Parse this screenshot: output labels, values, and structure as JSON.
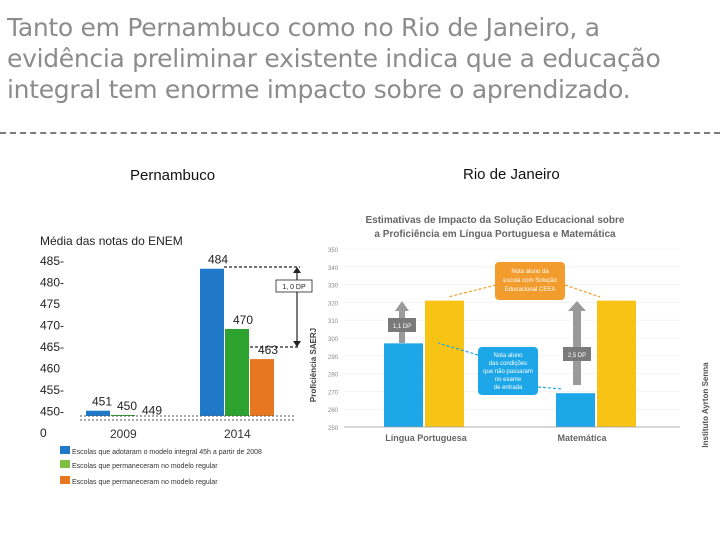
{
  "slide": {
    "title": "Tanto em Pernambuco como no Rio de Janeiro, a evidência preliminar existente indica que a educação integral tem enorme impacto sobre o aprendizado."
  },
  "chart_data": [
    {
      "type": "bar",
      "panel_label": "Pernambuco",
      "title": "Média das notas do ENEM",
      "categories": [
        "2009",
        "2014"
      ],
      "y_tick_labels": [
        "485-",
        "480-",
        "475",
        "470-",
        "465-",
        "460",
        "455-",
        "450-",
        "0"
      ],
      "ylim": [
        450,
        485
      ],
      "series": [
        {
          "name": "Escolas que adotaram o modelo integral 45h a partir de 2008",
          "color": "#1f78c8",
          "values": [
            451,
            484
          ]
        },
        {
          "name": "Escolas que permaneceram no modelo regular",
          "color": "#2ea22e",
          "values": [
            450,
            470
          ]
        },
        {
          "name": "Escolas que permaneceram no modelo regular",
          "color": "#e87722",
          "values": [
            449,
            463
          ]
        }
      ],
      "value_labels": [
        [
          "451",
          "450",
          "449"
        ],
        [
          "484",
          "470",
          "463"
        ]
      ],
      "annotation": "1, 0 DP"
    },
    {
      "type": "bar",
      "panel_label": "Rio de Janeiro",
      "title": "Estimativas de Impacto da Solução Educacional sobre a Proficiência em Língua Portuguesa e Matemática",
      "ylabel": "Proficiência SAERJ",
      "ylim": [
        250,
        350
      ],
      "y_ticks": [
        "350",
        "340",
        "330",
        "320",
        "310",
        "300",
        "290",
        "280",
        "270",
        "260",
        "250"
      ],
      "categories": [
        "Língua Portuguesa",
        "Matemática"
      ],
      "series": [
        {
          "name": "Nota aluno das condições que não passaram no exame de entrada",
          "color": "#1ea7e8",
          "values": [
            297,
            269
          ]
        },
        {
          "name": "Nota aluno da escola com Solução Educacional CEEA",
          "color": "#f7c416",
          "values": [
            321,
            321
          ]
        }
      ],
      "effect_labels": [
        "1,1 DP",
        "2,5 DP"
      ],
      "callouts": [
        "Nota aluno da escola com Solução Educacional CEEA",
        "Nota aluno das condições que não passaram no exame de entrada"
      ],
      "source": "Instituto Ayrton Senna"
    }
  ]
}
